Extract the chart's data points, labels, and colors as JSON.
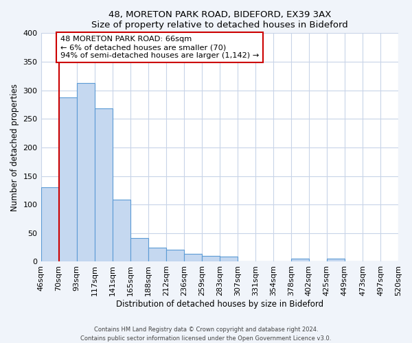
{
  "title": "48, MORETON PARK ROAD, BIDEFORD, EX39 3AX",
  "subtitle": "Size of property relative to detached houses in Bideford",
  "xlabel": "Distribution of detached houses by size in Bideford",
  "ylabel": "Number of detached properties",
  "bin_labels": [
    "46sqm",
    "70sqm",
    "93sqm",
    "117sqm",
    "141sqm",
    "165sqm",
    "188sqm",
    "212sqm",
    "236sqm",
    "259sqm",
    "283sqm",
    "307sqm",
    "331sqm",
    "354sqm",
    "378sqm",
    "402sqm",
    "425sqm",
    "449sqm",
    "473sqm",
    "497sqm",
    "520sqm"
  ],
  "bar_values": [
    130,
    287,
    313,
    268,
    109,
    41,
    25,
    21,
    14,
    10,
    9,
    0,
    0,
    0,
    5,
    0,
    5,
    0,
    0,
    0
  ],
  "bar_color": "#c5d8f0",
  "bar_edge_color": "#5b9bd5",
  "marker_line_color": "#cc0000",
  "annotation_text": "48 MORETON PARK ROAD: 66sqm\n← 6% of detached houses are smaller (70)\n94% of semi-detached houses are larger (1,142) →",
  "annotation_box_color": "#ffffff",
  "annotation_box_edge_color": "#cc0000",
  "ylim": [
    0,
    400
  ],
  "yticks": [
    0,
    50,
    100,
    150,
    200,
    250,
    300,
    350,
    400
  ],
  "footer_line1": "Contains HM Land Registry data © Crown copyright and database right 2024.",
  "footer_line2": "Contains public sector information licensed under the Open Government Licence v3.0.",
  "background_color": "#f0f4fa",
  "plot_bg_color": "#ffffff",
  "grid_color": "#c8d4e8"
}
